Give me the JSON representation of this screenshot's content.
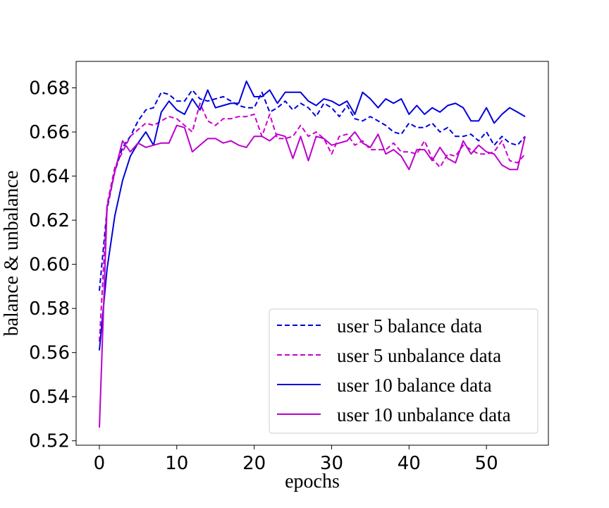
{
  "chart_data": {
    "type": "line",
    "xlabel": "epochs",
    "ylabel": "balance & unbalance",
    "xlim": [
      -3,
      58
    ],
    "ylim": [
      0.518,
      0.692
    ],
    "xticks": [
      0,
      10,
      20,
      30,
      40,
      50
    ],
    "yticks": [
      0.52,
      0.54,
      0.56,
      0.58,
      0.6,
      0.62,
      0.64,
      0.66,
      0.68
    ],
    "ytick_labels": [
      "0.52",
      "0.54",
      "0.56",
      "0.58",
      "0.60",
      "0.62",
      "0.64",
      "0.66",
      "0.68"
    ],
    "xtick_labels": [
      "0",
      "10",
      "20",
      "30",
      "40",
      "50"
    ],
    "grid": false,
    "legend_position": "lower right",
    "x": [
      0,
      1,
      2,
      3,
      4,
      5,
      6,
      7,
      8,
      9,
      10,
      11,
      12,
      13,
      14,
      15,
      16,
      17,
      18,
      19,
      20,
      21,
      22,
      23,
      24,
      25,
      26,
      27,
      28,
      29,
      30,
      31,
      32,
      33,
      34,
      35,
      36,
      37,
      38,
      39,
      40,
      41,
      42,
      43,
      44,
      45,
      46,
      47,
      48,
      49,
      50,
      51,
      52,
      53,
      54,
      55
    ],
    "series": [
      {
        "name": "user 5 balance data",
        "color": "#0000dd",
        "dash": true,
        "values": [
          0.588,
          0.625,
          0.642,
          0.653,
          0.658,
          0.665,
          0.67,
          0.671,
          0.678,
          0.677,
          0.674,
          0.674,
          0.679,
          0.675,
          0.674,
          0.675,
          0.676,
          0.674,
          0.672,
          0.671,
          0.671,
          0.678,
          0.669,
          0.671,
          0.674,
          0.67,
          0.673,
          0.671,
          0.667,
          0.673,
          0.671,
          0.667,
          0.672,
          0.666,
          0.665,
          0.667,
          0.665,
          0.663,
          0.66,
          0.659,
          0.664,
          0.662,
          0.662,
          0.664,
          0.66,
          0.662,
          0.658,
          0.658,
          0.659,
          0.656,
          0.66,
          0.654,
          0.658,
          0.655,
          0.654,
          0.658
        ]
      },
      {
        "name": "user 5 unbalance data",
        "color": "#cc00cc",
        "dash": true,
        "values": [
          0.565,
          0.627,
          0.644,
          0.651,
          0.658,
          0.661,
          0.664,
          0.663,
          0.665,
          0.667,
          0.666,
          0.663,
          0.66,
          0.673,
          0.665,
          0.663,
          0.666,
          0.666,
          0.667,
          0.667,
          0.668,
          0.658,
          0.668,
          0.657,
          0.657,
          0.658,
          0.663,
          0.658,
          0.66,
          0.657,
          0.65,
          0.658,
          0.659,
          0.654,
          0.656,
          0.652,
          0.652,
          0.652,
          0.655,
          0.651,
          0.651,
          0.65,
          0.656,
          0.648,
          0.644,
          0.65,
          0.649,
          0.654,
          0.652,
          0.65,
          0.65,
          0.651,
          0.656,
          0.647,
          0.646,
          0.65
        ]
      },
      {
        "name": "user 10 balance data",
        "color": "#0000dd",
        "dash": false,
        "values": [
          0.561,
          0.598,
          0.622,
          0.638,
          0.649,
          0.655,
          0.66,
          0.654,
          0.669,
          0.674,
          0.67,
          0.668,
          0.675,
          0.67,
          0.679,
          0.671,
          0.672,
          0.673,
          0.673,
          0.683,
          0.676,
          0.676,
          0.679,
          0.673,
          0.678,
          0.678,
          0.678,
          0.674,
          0.672,
          0.675,
          0.674,
          0.672,
          0.674,
          0.668,
          0.678,
          0.675,
          0.671,
          0.675,
          0.673,
          0.675,
          0.668,
          0.672,
          0.668,
          0.671,
          0.669,
          0.672,
          0.673,
          0.671,
          0.665,
          0.665,
          0.671,
          0.664,
          0.668,
          0.671,
          0.669,
          0.667
        ]
      },
      {
        "name": "user 10 unbalance data",
        "color": "#bb00cc",
        "dash": false,
        "values": [
          0.526,
          0.626,
          0.642,
          0.656,
          0.651,
          0.655,
          0.653,
          0.654,
          0.655,
          0.655,
          0.663,
          0.662,
          0.651,
          0.654,
          0.657,
          0.657,
          0.655,
          0.656,
          0.654,
          0.653,
          0.658,
          0.658,
          0.656,
          0.659,
          0.658,
          0.648,
          0.658,
          0.647,
          0.658,
          0.657,
          0.654,
          0.655,
          0.656,
          0.66,
          0.655,
          0.653,
          0.659,
          0.65,
          0.652,
          0.649,
          0.643,
          0.652,
          0.652,
          0.647,
          0.653,
          0.648,
          0.646,
          0.656,
          0.65,
          0.654,
          0.651,
          0.65,
          0.645,
          0.643,
          0.643,
          0.658
        ]
      }
    ]
  }
}
